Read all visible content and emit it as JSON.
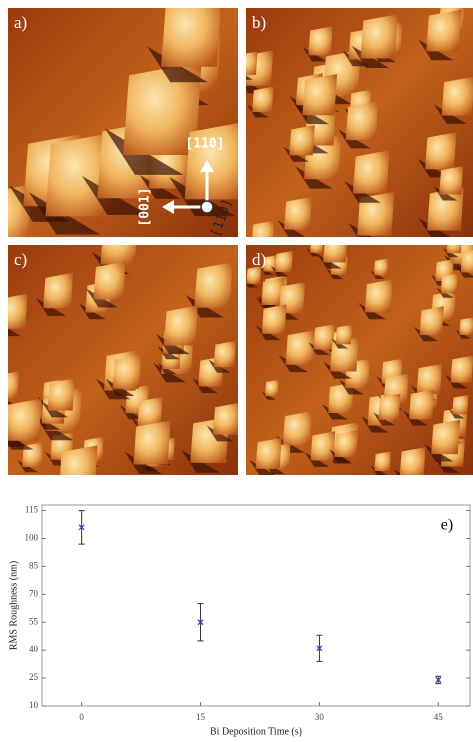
{
  "panels": [
    {
      "label": "a)"
    },
    {
      "label": "b)"
    },
    {
      "label": "c)"
    },
    {
      "label": "d)"
    }
  ],
  "directions": [
    "[1̄10]",
    "[001]",
    "[110]"
  ],
  "chart_data": {
    "type": "scatter",
    "annotation": "e)",
    "x_label": "Bi Deposition Time (s)",
    "y_label": "RMS Roughness (nm)",
    "x": [
      0,
      15,
      30,
      45
    ],
    "values": [
      106,
      55,
      41,
      24
    ],
    "errors": [
      9,
      10,
      7,
      2
    ],
    "color": "#3b3fa6",
    "error_color": "#333333",
    "xlim": [
      -5,
      49
    ],
    "xticks": [
      0,
      15,
      30,
      45
    ],
    "ylim": [
      10,
      118
    ],
    "yticks": [
      10,
      25,
      40,
      55,
      70,
      85,
      100,
      115
    ]
  }
}
